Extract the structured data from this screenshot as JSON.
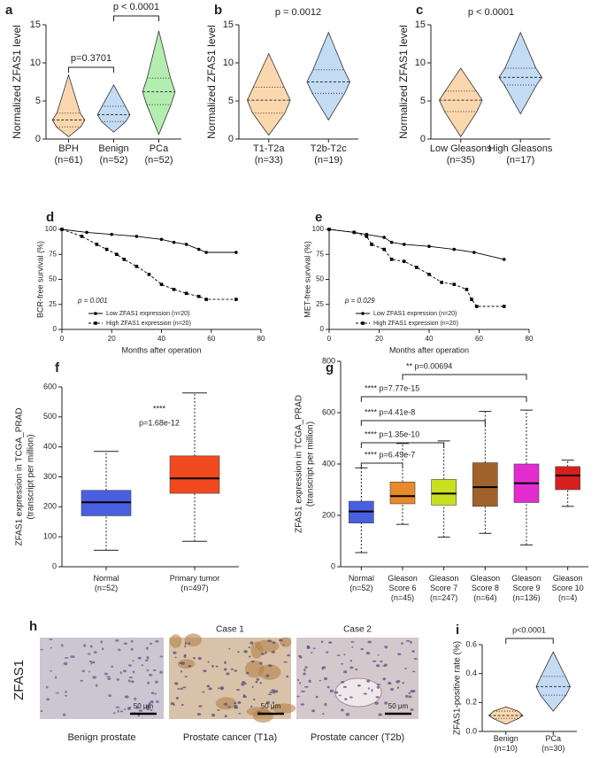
{
  "chart_data": [
    {
      "label": "a",
      "type": "violin",
      "ylabel": "Normalized ZFAS1 level",
      "categories": [
        "BPH",
        "Benign",
        "PCa"
      ],
      "category_notes": [
        "(n=61)",
        "(n=52)",
        "(n=52)"
      ],
      "min": [
        0.3,
        0.9,
        0.6
      ],
      "q1": [
        1.6,
        2.3,
        4.5
      ],
      "median": [
        2.5,
        3.2,
        6.2
      ],
      "q3": [
        3.4,
        4.3,
        8.0
      ],
      "max": [
        8.4,
        7.1,
        14.2
      ],
      "colors": [
        "#fbd7ae",
        "#c4dbf4",
        "#b3eeb0"
      ],
      "ylim": [
        0,
        15
      ],
      "yticks": [
        0,
        5,
        10,
        15
      ],
      "annotations": [
        "p=0.3701",
        "p < 0.0001"
      ]
    },
    {
      "label": "b",
      "type": "violin",
      "ylabel": "Normalized ZFAS1 level",
      "categories": [
        "T1-T2a",
        "T2b-T2c"
      ],
      "category_notes": [
        "(n=33)",
        "(n=19)"
      ],
      "min": [
        0.5,
        2.5
      ],
      "q1": [
        3.4,
        6.0
      ],
      "median": [
        5.1,
        7.5
      ],
      "q3": [
        6.8,
        9.1
      ],
      "max": [
        11.2,
        14.0
      ],
      "colors": [
        "#fbd7ae",
        "#c4dbf4"
      ],
      "ylim": [
        0,
        15
      ],
      "yticks": [
        0,
        5,
        10,
        15
      ],
      "annotations": [
        "p = 0.0012"
      ]
    },
    {
      "label": "c",
      "type": "violin",
      "ylabel": "Normalized ZFAS1 level",
      "categories": [
        "Low Gleasons",
        "High Gleasons"
      ],
      "category_notes": [
        "(n=35)",
        "(n=17)"
      ],
      "min": [
        0.3,
        3.3
      ],
      "q1": [
        3.6,
        7.1
      ],
      "median": [
        5.1,
        8.1
      ],
      "q3": [
        6.3,
        9.3
      ],
      "max": [
        9.3,
        14.0
      ],
      "colors": [
        "#fbd7ae",
        "#c4dbf4"
      ],
      "ylim": [
        0,
        15
      ],
      "yticks": [
        0,
        5,
        10,
        15
      ],
      "annotations": [
        "p < 0.0001"
      ]
    },
    {
      "label": "d",
      "type": "line",
      "ylabel": "BCR-free survival (%)",
      "xlabel": "Months after operation",
      "xlim": [
        0,
        80
      ],
      "xticks": [
        0,
        20,
        40,
        60,
        80
      ],
      "ylim": [
        0,
        100
      ],
      "yticks": [
        0,
        25,
        50,
        75,
        100
      ],
      "legend": "lower left",
      "annotations": [
        "p = 0.001"
      ],
      "series": [
        {
          "name": "Low ZFAS1 expression (n=20)",
          "color": "#000000",
          "marker": "circle",
          "dash": false,
          "x": [
            0,
            10,
            20,
            30,
            40,
            45,
            50,
            55,
            58,
            70
          ],
          "values": [
            100,
            97,
            95,
            93,
            90,
            87,
            85,
            80,
            77,
            77
          ]
        },
        {
          "name": "High ZFAS1 expression (n=20)",
          "color": "#000000",
          "marker": "square",
          "dash": true,
          "x": [
            0,
            8,
            14,
            18,
            22,
            25,
            30,
            35,
            40,
            45,
            50,
            55,
            58,
            70
          ],
          "values": [
            100,
            93,
            85,
            80,
            75,
            70,
            63,
            55,
            45,
            40,
            36,
            33,
            30,
            30
          ]
        }
      ]
    },
    {
      "label": "e",
      "type": "line",
      "ylabel": "MET-free survival (%)",
      "xlabel": "Months after operation",
      "xlim": [
        0,
        80
      ],
      "xticks": [
        0,
        20,
        40,
        60,
        80
      ],
      "ylim": [
        0,
        100
      ],
      "yticks": [
        0,
        25,
        50,
        75,
        100
      ],
      "legend": "lower left",
      "annotations": [
        "p = 0.029"
      ],
      "series": [
        {
          "name": "Low ZFAS1 expression (n=20)",
          "color": "#000000",
          "marker": "circle",
          "dash": false,
          "x": [
            0,
            10,
            15,
            22,
            25,
            30,
            40,
            50,
            58,
            70
          ],
          "values": [
            100,
            97,
            95,
            92,
            87,
            85,
            83,
            80,
            77,
            70
          ]
        },
        {
          "name": "High ZFAS1 expression (n=20)",
          "color": "#000000",
          "marker": "square",
          "dash": true,
          "x": [
            0,
            10,
            15,
            17,
            22,
            25,
            30,
            35,
            40,
            45,
            50,
            55,
            57,
            59,
            70
          ],
          "values": [
            100,
            97,
            93,
            85,
            80,
            70,
            68,
            62,
            55,
            47,
            45,
            40,
            30,
            23,
            23
          ]
        }
      ]
    },
    {
      "label": "f",
      "type": "box",
      "ylabel": [
        "ZFAS1 expression in TCGA_PRAD",
        "(transcript per million)"
      ],
      "categories": [
        "Normal",
        "Primary tumor"
      ],
      "category_notes": [
        "(n=52)",
        "(n=497)"
      ],
      "min": [
        55,
        85
      ],
      "q1": [
        170,
        245
      ],
      "median": [
        215,
        295
      ],
      "q3": [
        255,
        370
      ],
      "max": [
        385,
        580
      ],
      "colors": [
        "#4a5fe0",
        "#f04a1e"
      ],
      "ylim": [
        0,
        600
      ],
      "yticks": [
        0,
        100,
        200,
        300,
        400,
        500,
        600
      ],
      "annotations": [
        "****",
        "p=1.68e-12"
      ]
    },
    {
      "label": "g",
      "type": "box",
      "ylabel": [
        "ZFAS1 expression in TCGA_PRAD",
        "(transcript per million)"
      ],
      "categories": [
        "Normal",
        "Gleason Score 6",
        "Gleason Score 7",
        "Gleason Score 8",
        "Gleason Score 9",
        "Gleason Score 10"
      ],
      "category_notes": [
        "(n=52)",
        "(n=45)",
        "(n=247)",
        "(n=64)",
        "(n=136)",
        "(n=4)"
      ],
      "min": [
        55,
        165,
        115,
        130,
        85,
        235
      ],
      "q1": [
        170,
        245,
        240,
        235,
        250,
        300
      ],
      "median": [
        215,
        275,
        285,
        310,
        325,
        355
      ],
      "q3": [
        255,
        330,
        340,
        405,
        400,
        390
      ],
      "max": [
        385,
        480,
        490,
        605,
        610,
        415
      ],
      "colors": [
        "#4a5fe0",
        "#e8892a",
        "#c8e020",
        "#a0622a",
        "#e22cd0",
        "#d81f1f"
      ],
      "ylim": [
        0,
        800
      ],
      "yticks": [
        0,
        200,
        400,
        600,
        800
      ],
      "annotations": [
        "**** p=6.49e-7",
        "**** p=1.35e-10",
        "**** p=4.41e-8",
        "**** p=7.77e-15",
        "** p=0.00694"
      ]
    },
    {
      "label": "i",
      "type": "violin",
      "ylabel": "ZFAS1-positive rate (%)",
      "categories": [
        "Benign",
        "PCa"
      ],
      "category_notes": [
        "(n=10)",
        "(n=30)"
      ],
      "min": [
        0.05,
        0.14
      ],
      "q1": [
        0.09,
        0.25
      ],
      "median": [
        0.11,
        0.31
      ],
      "q3": [
        0.14,
        0.38
      ],
      "max": [
        0.17,
        0.55
      ],
      "colors": [
        "#fbd7ae",
        "#c4dbf4"
      ],
      "ylim": [
        0,
        0.6
      ],
      "yticks": [
        {
          "value": 0,
          "label": "0.0"
        },
        0.2,
        0.4,
        0.6
      ],
      "annotations": [
        "p<0.0001"
      ]
    }
  ],
  "micrographs": {
    "label": "h",
    "row_label": "ZFAS1",
    "panels": [
      {
        "caption": "Benign prostate",
        "scale": "50 μm"
      },
      {
        "title": "Case 1",
        "caption": "Prostate cancer (T1a)",
        "scale": "50 μm"
      },
      {
        "title": "Case 2",
        "caption": "Prostate cancer (T2b)",
        "scale": "50 μm"
      }
    ]
  }
}
